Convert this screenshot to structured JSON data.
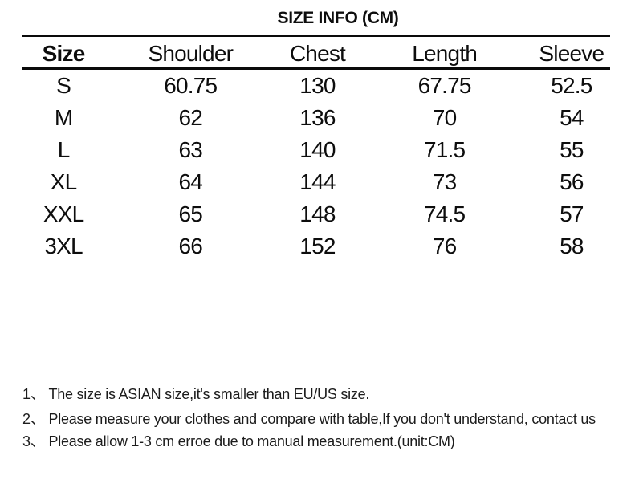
{
  "title": "SIZE INFO (CM)",
  "size_table": {
    "columns": [
      "Size",
      "Shoulder",
      "Chest",
      "Length",
      "Sleeve"
    ],
    "rows": [
      [
        "S",
        "60.75",
        "130",
        "67.75",
        "52.5"
      ],
      [
        "M",
        "62",
        "136",
        "70",
        "54"
      ],
      [
        "L",
        "63",
        "140",
        "71.5",
        "55"
      ],
      [
        "XL",
        "64",
        "144",
        "73",
        "56"
      ],
      [
        "XXL",
        "65",
        "148",
        "74.5",
        "57"
      ],
      [
        "3XL",
        "66",
        "152",
        "76",
        "58"
      ]
    ]
  },
  "notes": [
    {
      "num": "1、",
      "text": "The size is ASIAN size,it's smaller than EU/US size."
    },
    {
      "num": "2、",
      "text": "Please measure your clothes and compare with table,If you don't understand, contact us"
    },
    {
      "num": "3、",
      "text": "Please allow 1-3 cm erroe due to manual measurement.(unit:CM)"
    }
  ]
}
